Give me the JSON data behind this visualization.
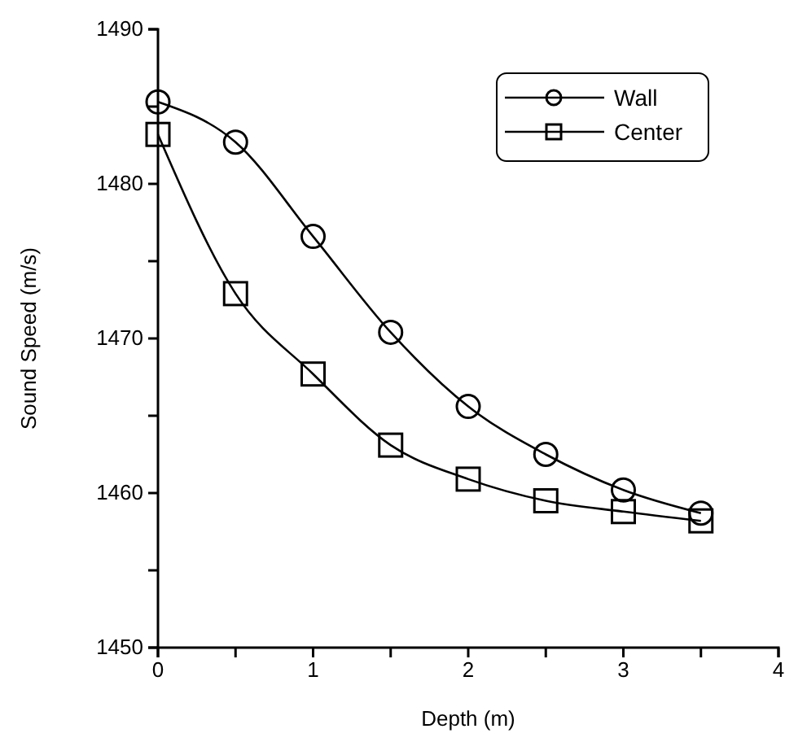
{
  "chart_data": {
    "type": "line",
    "xlabel": "Depth (m)",
    "ylabel": "Sound Speed (m/s)",
    "x": [
      0,
      0.5,
      1,
      1.5,
      2,
      2.5,
      3,
      3.5
    ],
    "series": [
      {
        "name": "Wall",
        "color": "#000000",
        "marker": "circle",
        "values": [
          1485.3,
          1482.7,
          1476.6,
          1470.4,
          1465.6,
          1462.5,
          1460.2,
          1458.7
        ]
      },
      {
        "name": "Center",
        "color": "#000000",
        "marker": "square",
        "values": [
          1483.2,
          1472.9,
          1467.7,
          1463.1,
          1460.9,
          1459.5,
          1458.8,
          1458.2
        ]
      }
    ],
    "xlim": [
      0,
      4
    ],
    "xticks": [
      0,
      {
        "value": 0.5,
        "label": null
      },
      1,
      {
        "value": 1.5,
        "label": null
      },
      2,
      {
        "value": 2.5,
        "label": null
      },
      3,
      {
        "value": 3.5,
        "label": null
      },
      4
    ],
    "ylim": [
      1450,
      1490
    ],
    "yticks": [
      1450,
      {
        "value": 1455,
        "label": null
      },
      1460,
      {
        "value": 1465,
        "label": null
      },
      1470,
      {
        "value": 1475,
        "label": null
      },
      1480,
      {
        "value": 1485,
        "label": null
      },
      1490
    ],
    "legend": "top right",
    "grid": false,
    "line_style": "solid"
  }
}
